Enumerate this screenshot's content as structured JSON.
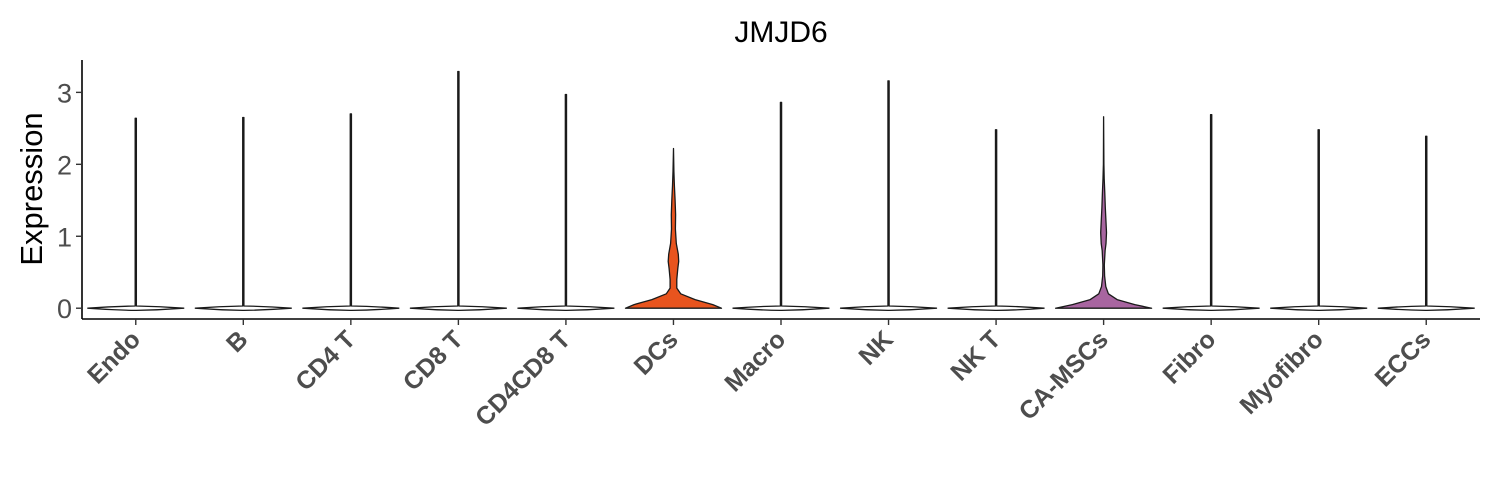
{
  "chart_data": {
    "type": "violin",
    "title": "JMJD6",
    "xlabel": "",
    "ylabel": "Expression",
    "ylim": [
      -0.15,
      3.45
    ],
    "yticks": [
      0,
      1,
      2,
      3
    ],
    "grid": false,
    "legend": "none",
    "categories": [
      "Endo",
      "B",
      "CD4 T",
      "CD8 T",
      "CD4CD8 T",
      "DCs",
      "Macro",
      "NK",
      "NK T",
      "CA-MSCs",
      "Fibro",
      "Myofibro",
      "ECCs"
    ],
    "max_values": [
      2.64,
      2.65,
      2.7,
      3.29,
      2.97,
      2.22,
      2.86,
      3.16,
      2.48,
      2.66,
      2.69,
      2.48,
      2.39
    ],
    "fill_colors": [
      "#ffffff",
      "#ffffff",
      "#ffffff",
      "#ffffff",
      "#ffffff",
      "#e8541e",
      "#ffffff",
      "#ffffff",
      "#ffffff",
      "#a865a0",
      "#ffffff",
      "#ffffff",
      "#ffffff"
    ],
    "density_profiles": {
      "DCs": [
        [
          0,
          1.0
        ],
        [
          0.05,
          0.82
        ],
        [
          0.12,
          0.45
        ],
        [
          0.2,
          0.15
        ],
        [
          0.28,
          0.07
        ],
        [
          0.4,
          0.07
        ],
        [
          0.55,
          0.09
        ],
        [
          0.65,
          0.11
        ],
        [
          0.75,
          0.1
        ],
        [
          0.9,
          0.06
        ],
        [
          1.1,
          0.04
        ],
        [
          1.3,
          0.045
        ],
        [
          1.5,
          0.035
        ],
        [
          1.7,
          0.02
        ],
        [
          1.9,
          0.01
        ],
        [
          2.22,
          0.0
        ]
      ],
      "CA-MSCs": [
        [
          0,
          1.0
        ],
        [
          0.05,
          0.65
        ],
        [
          0.12,
          0.28
        ],
        [
          0.2,
          0.1
        ],
        [
          0.3,
          0.045
        ],
        [
          0.45,
          0.02
        ],
        [
          0.6,
          0.015
        ],
        [
          0.8,
          0.03
        ],
        [
          0.9,
          0.05
        ],
        [
          1.05,
          0.06
        ],
        [
          1.2,
          0.05
        ],
        [
          1.4,
          0.035
        ],
        [
          1.6,
          0.025
        ],
        [
          1.8,
          0.012
        ],
        [
          2.0,
          0.005
        ],
        [
          2.66,
          0.0
        ]
      ]
    }
  }
}
